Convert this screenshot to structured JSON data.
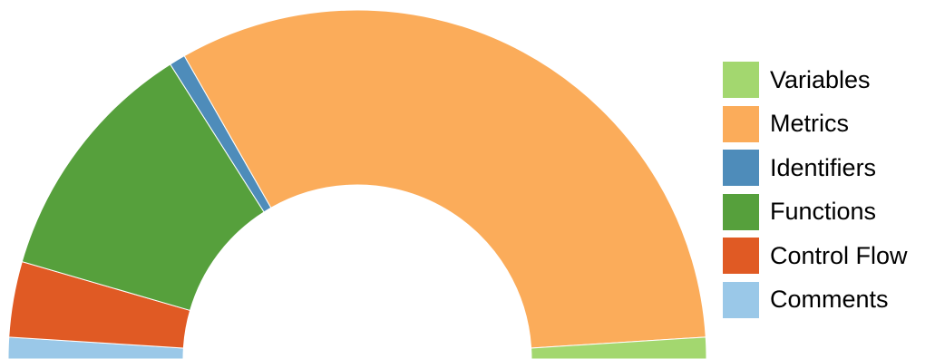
{
  "chart_data": {
    "type": "pie",
    "subtype": "half-donut",
    "title": "",
    "legend_position": "right",
    "slices": [
      {
        "label": "Comments",
        "value": 2,
        "color": "#9ac8e8"
      },
      {
        "label": "Control Flow",
        "value": 7,
        "color": "#e05a24"
      },
      {
        "label": "Functions",
        "value": 23,
        "color": "#56a03c"
      },
      {
        "label": "Identifiers",
        "value": 1.5,
        "color": "#4e8cba"
      },
      {
        "label": "Metrics",
        "value": 64.5,
        "color": "#fbac5a"
      },
      {
        "label": "Variables",
        "value": 2,
        "color": "#a3d76f"
      }
    ],
    "legend": [
      {
        "label": "Variables",
        "color": "#a3d76f"
      },
      {
        "label": "Metrics",
        "color": "#fbac5a"
      },
      {
        "label": "Identifiers",
        "color": "#4e8cba"
      },
      {
        "label": "Functions",
        "color": "#56a03c"
      },
      {
        "label": "Control Flow",
        "color": "#e05a24"
      },
      {
        "label": "Comments",
        "color": "#9ac8e8"
      }
    ]
  }
}
